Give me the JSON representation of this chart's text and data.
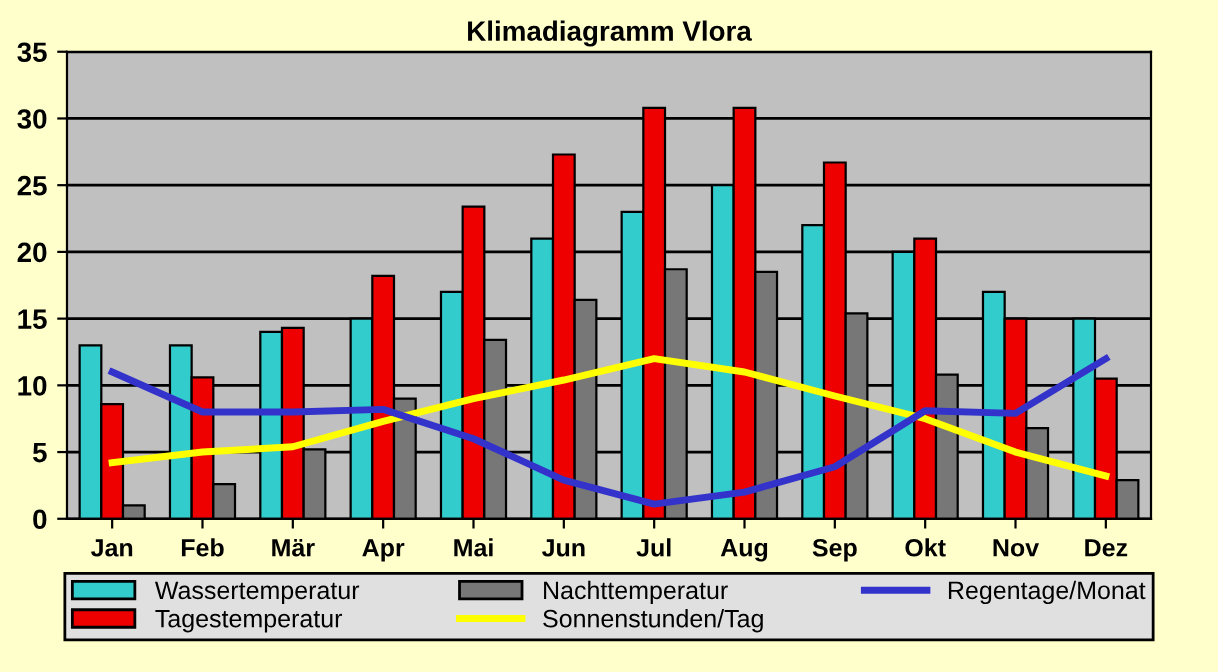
{
  "chart_data": {
    "type": "bar",
    "title": "Klimadiagramm Vlora",
    "categories": [
      "Jan",
      "Feb",
      "Mär",
      "Apr",
      "Mai",
      "Jun",
      "Jul",
      "Aug",
      "Sep",
      "Okt",
      "Nov",
      "Dez"
    ],
    "series": [
      {
        "name": "Wassertemperatur",
        "color": "#33cccc",
        "values": [
          13,
          13,
          14,
          15,
          17,
          21,
          23,
          25,
          22,
          20,
          17,
          15
        ]
      },
      {
        "name": "Tagestemperatur",
        "color": "#ee0000",
        "values": [
          8.6,
          10.6,
          14.3,
          18.2,
          23.4,
          27.3,
          30.8,
          30.8,
          26.7,
          21,
          15,
          10.5
        ]
      },
      {
        "name": "Nachttemperatur",
        "color": "#777777",
        "values": [
          1,
          2.6,
          5.2,
          9,
          13.4,
          16.4,
          18.7,
          18.5,
          15.4,
          10.8,
          6.8,
          2.9
        ]
      },
      {
        "name": "Sonnenstunden/Tag",
        "type": "line",
        "color": "#ffff00",
        "values": [
          4.2,
          5,
          5.4,
          7.3,
          9,
          10.4,
          12,
          11,
          9.2,
          7.5,
          5,
          3.2
        ]
      },
      {
        "name": "Regentage/Monat",
        "type": "line",
        "color": "#3333cc",
        "values": [
          11,
          8,
          8,
          8.2,
          6,
          2.9,
          1.1,
          2,
          3.9,
          8.1,
          7.9,
          12
        ]
      }
    ],
    "ylim": [
      0,
      35
    ],
    "yticks": [
      0,
      5,
      10,
      15,
      20,
      25,
      30,
      35
    ],
    "grid": "y",
    "legend": "bottom",
    "marker": "none",
    "line_style": "solid"
  }
}
